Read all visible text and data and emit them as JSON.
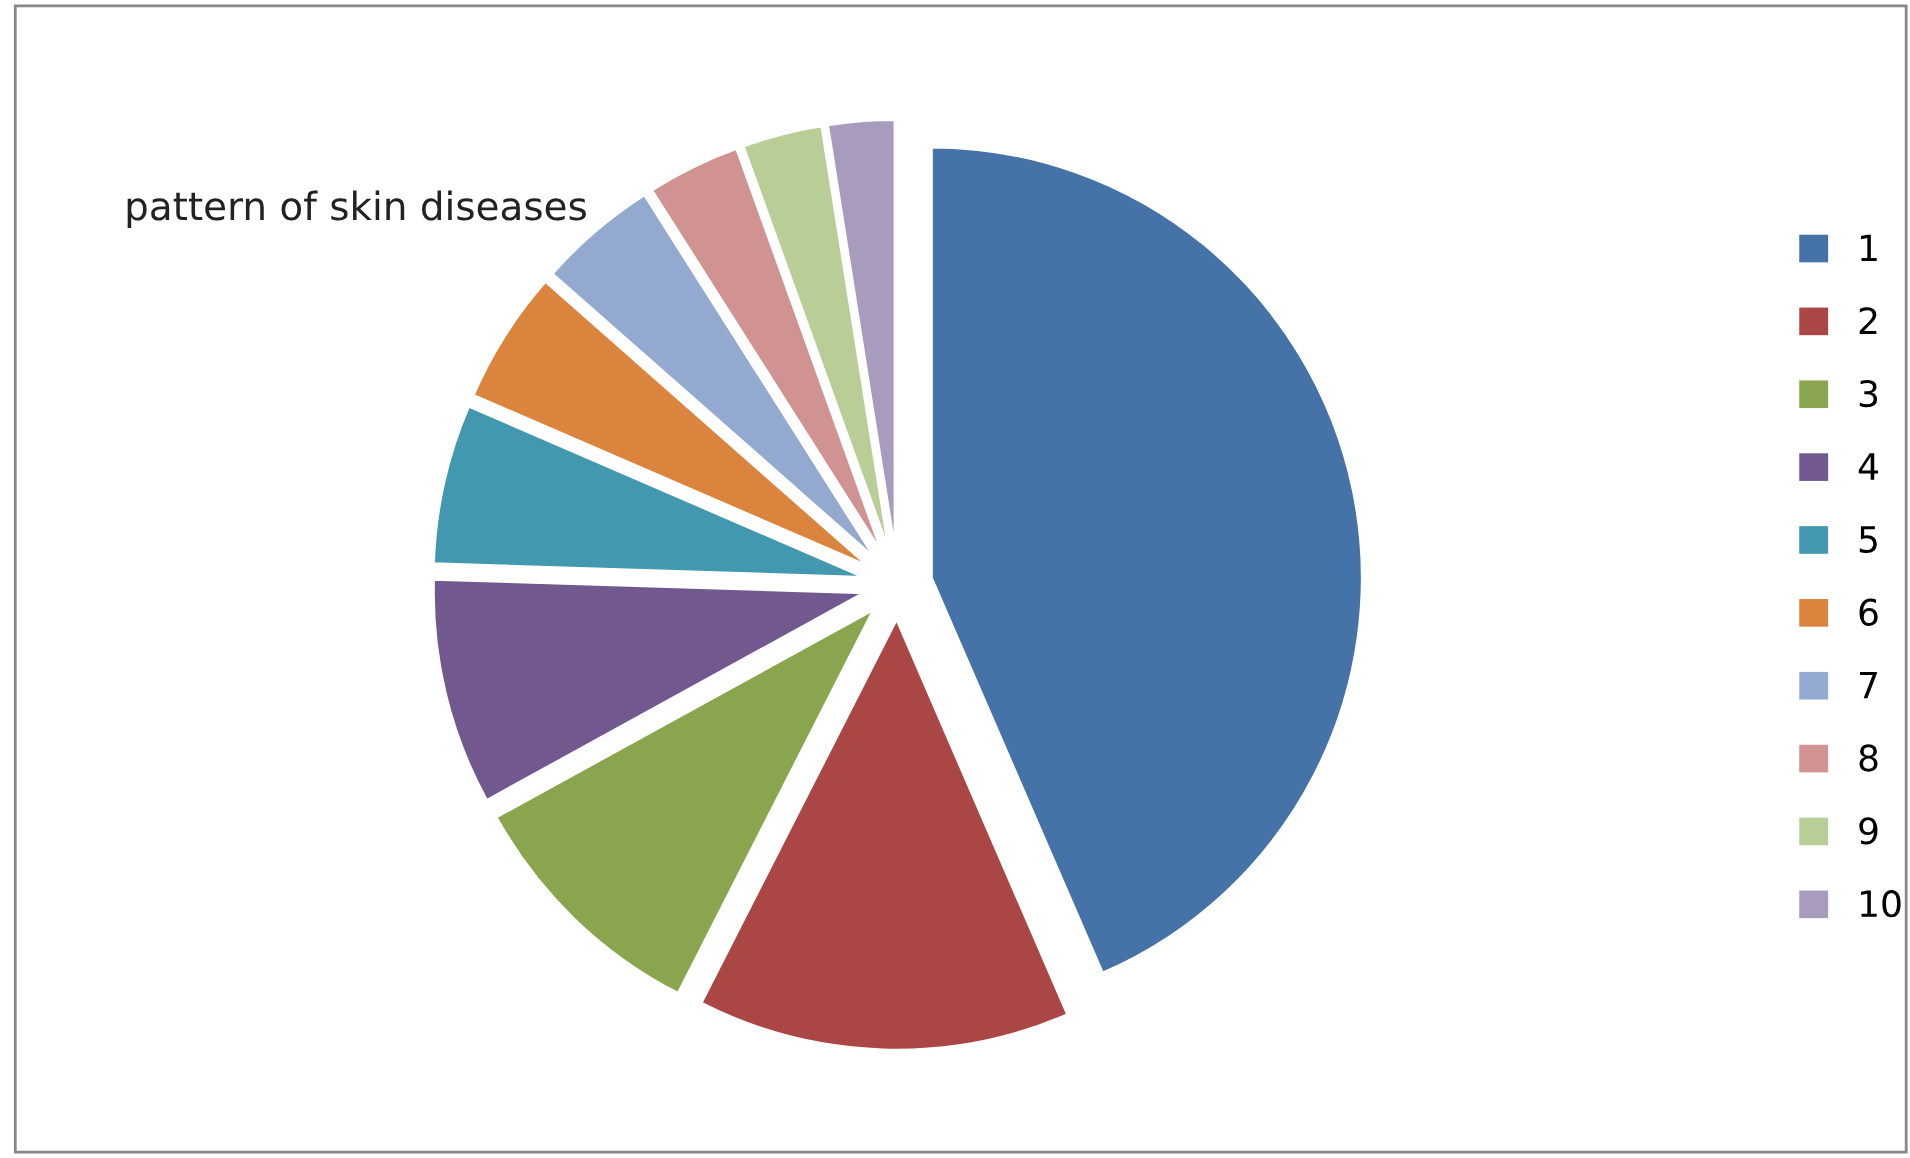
{
  "chart_data": {
    "type": "pie",
    "title": "pattern of skin diseases",
    "categories": [
      "1",
      "2",
      "3",
      "4",
      "5",
      "6",
      "7",
      "8",
      "9",
      "10"
    ],
    "values": [
      43.5,
      14,
      9.5,
      8.5,
      6,
      5,
      4.5,
      3.5,
      3,
      2.5
    ],
    "colors": [
      "#4572a7",
      "#aa4643",
      "#89a54e",
      "#71588f",
      "#4198af",
      "#db843d",
      "#93a9cf",
      "#d19392",
      "#b9cd96",
      "#a99bbd"
    ],
    "legend": "right"
  }
}
